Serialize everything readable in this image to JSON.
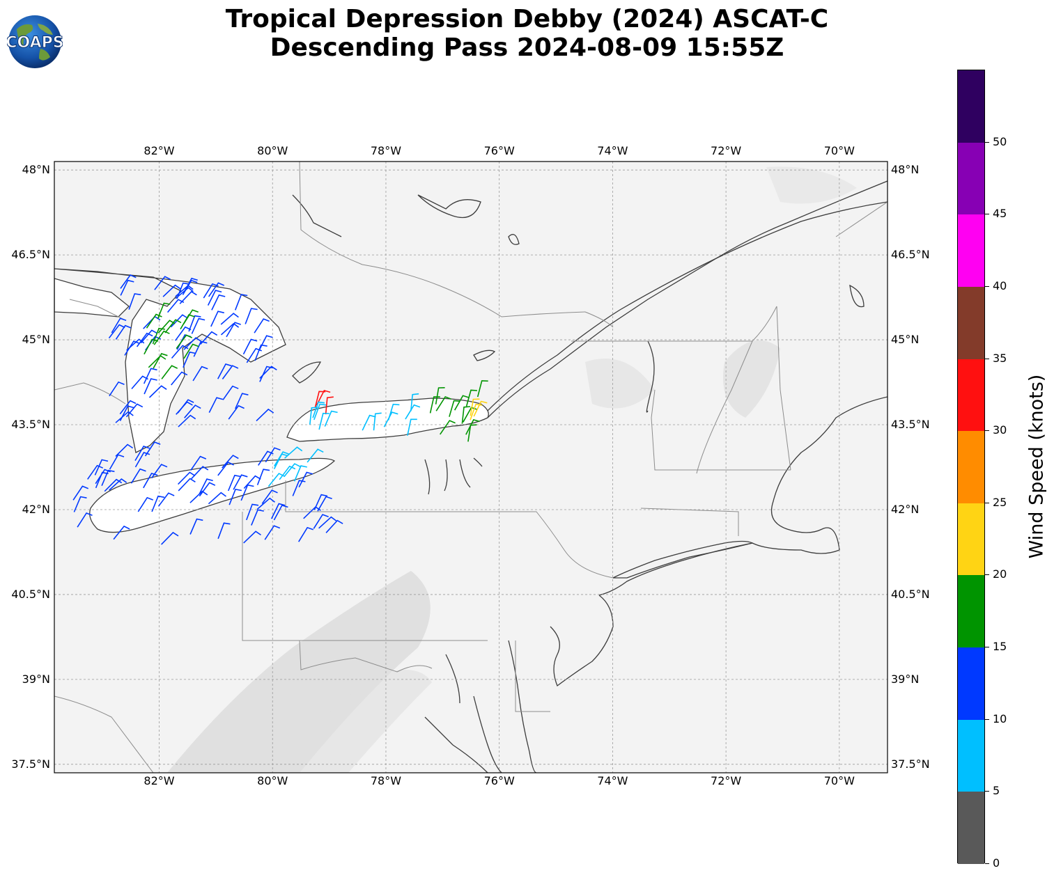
{
  "header": {
    "title_line1": "Tropical Depression Debby (2024) ASCAT-C",
    "title_line2": "Descending Pass 2024-08-09 15:55Z",
    "logo_text": "COAPS"
  },
  "map": {
    "lon_range": [
      -83.85,
      -69.15
    ],
    "lat_range": [
      37.35,
      48.15
    ],
    "lon_ticks": [
      "82°W",
      "80°W",
      "78°W",
      "76°W",
      "74°W",
      "72°W",
      "70°W"
    ],
    "lon_tick_values": [
      -82,
      -80,
      -78,
      -76,
      -74,
      -72,
      -70
    ],
    "lat_ticks": [
      "48°N",
      "46.5°N",
      "45°N",
      "43.5°N",
      "42°N",
      "40.5°N",
      "39°N",
      "37.5°N"
    ],
    "lat_tick_values": [
      48,
      46.5,
      45,
      43.5,
      42,
      40.5,
      39,
      37.5
    ],
    "coastline_color": "#3c3c3c",
    "border_color": "#8c8c8c",
    "gridline": true,
    "wind_barbs": [
      {
        "region": "Lake Huron / Georgian Bay",
        "color_class": "10-15",
        "count": 70
      },
      {
        "region": "Lake Huron central",
        "color_class": "15-20",
        "count": 14
      },
      {
        "region": "Lake Erie",
        "color_class": "10-15",
        "count": 60
      },
      {
        "region": "Lake Erie east",
        "color_class": "5-10",
        "count": 8
      },
      {
        "region": "Lake Ontario west",
        "color_class": "30-35",
        "count": 3
      },
      {
        "region": "Lake Ontario central",
        "color_class": "5-10",
        "count": 12
      },
      {
        "region": "Lake Ontario east",
        "color_class": "15-20",
        "count": 12
      },
      {
        "region": "Lake Ontario far east",
        "color_class": "20-25",
        "count": 3
      }
    ]
  },
  "colorbar": {
    "title": "Wind Speed (knots)",
    "ticks": [
      "0",
      "5",
      "10",
      "15",
      "20",
      "25",
      "30",
      "35",
      "40",
      "45",
      "50"
    ],
    "bins": [
      {
        "range": "0-5",
        "color": "#595959"
      },
      {
        "range": "5-10",
        "color": "#00bfff"
      },
      {
        "range": "10-15",
        "color": "#0039ff"
      },
      {
        "range": "15-20",
        "color": "#009400"
      },
      {
        "range": "20-25",
        "color": "#ffd414"
      },
      {
        "range": "25-30",
        "color": "#ff8c00"
      },
      {
        "range": "30-35",
        "color": "#ff1010"
      },
      {
        "range": "35-40",
        "color": "#833b2a"
      },
      {
        "range": "40-45",
        "color": "#ff00f2"
      },
      {
        "range": "45-50",
        "color": "#8700b4"
      },
      {
        "range": "50+",
        "color": "#2f0060"
      }
    ]
  }
}
